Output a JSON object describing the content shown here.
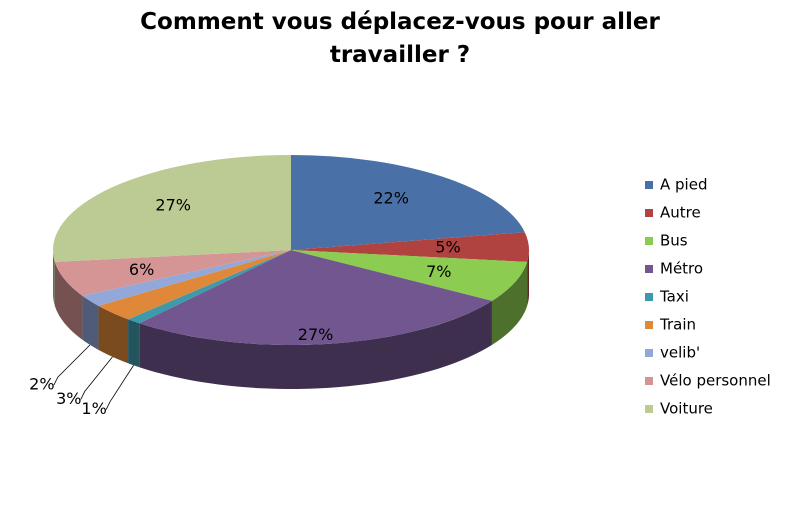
{
  "chart_data": {
    "type": "pie",
    "title": "Comment vous déplacez-vous pour aller travailler ?",
    "categories": [
      "A pied",
      "Autre",
      "Bus",
      "Métro",
      "Taxi",
      "Train",
      "velib'",
      "Vélo personnel",
      "Voiture"
    ],
    "values": [
      22,
      5,
      7,
      27,
      1,
      3,
      2,
      6,
      27
    ],
    "value_labels": [
      "22%",
      "5%",
      "7%",
      "27%",
      "1%",
      "3%",
      "2%",
      "6%",
      "27%"
    ],
    "colors": [
      "#4a70a8",
      "#b04240",
      "#8ccc50",
      "#71568f",
      "#3d9aaa",
      "#e0883a",
      "#92a8d8",
      "#d49594",
      "#bbcb93"
    ],
    "legend": "right"
  }
}
